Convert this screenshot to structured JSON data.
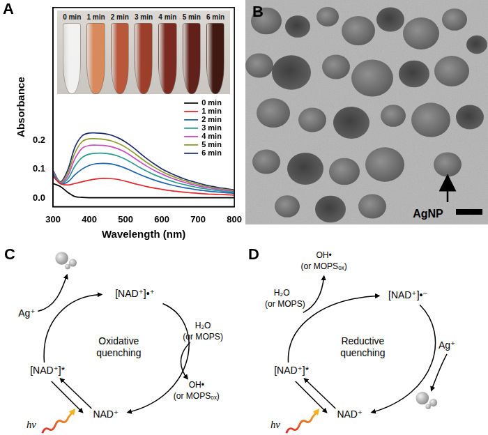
{
  "chart_data": {
    "type": "line",
    "x_label": "Wavelength (nm)",
    "y_label": "Absorbance",
    "x": [
      300,
      320,
      340,
      360,
      380,
      400,
      420,
      440,
      460,
      480,
      500,
      520,
      540,
      560,
      580,
      600,
      620,
      640,
      660,
      680,
      700,
      720,
      740,
      760,
      780,
      800
    ],
    "series": [
      {
        "name": "0 min",
        "color": "#000000",
        "values": [
          0.05,
          0.04,
          0.02,
          0.005,
          0.002,
          0.001,
          0.001,
          0.001,
          0.001,
          0.001,
          0.001,
          0.001,
          0.001,
          0.001,
          0.001,
          0.001,
          0.001,
          0.001,
          0.001,
          0.001,
          0.001,
          0.001,
          0.001,
          0.001,
          0.001,
          0.001
        ]
      },
      {
        "name": "1 min",
        "color": "#e3262b",
        "values": [
          0.075,
          0.05,
          0.045,
          0.05,
          0.056,
          0.062,
          0.066,
          0.068,
          0.067,
          0.064,
          0.058,
          0.051,
          0.045,
          0.039,
          0.034,
          0.03,
          0.026,
          0.023,
          0.02,
          0.018,
          0.016,
          0.014,
          0.013,
          0.012,
          0.011,
          0.01
        ]
      },
      {
        "name": "2 min",
        "color": "#1f64ad",
        "values": [
          0.08,
          0.05,
          0.055,
          0.08,
          0.1,
          0.113,
          0.119,
          0.12,
          0.118,
          0.112,
          0.103,
          0.092,
          0.081,
          0.071,
          0.062,
          0.054,
          0.047,
          0.041,
          0.036,
          0.032,
          0.028,
          0.025,
          0.022,
          0.02,
          0.018,
          0.016
        ]
      },
      {
        "name": "3 min",
        "color": "#2a9a8e",
        "values": [
          0.085,
          0.05,
          0.065,
          0.11,
          0.14,
          0.152,
          0.155,
          0.155,
          0.152,
          0.145,
          0.134,
          0.12,
          0.105,
          0.092,
          0.08,
          0.07,
          0.061,
          0.053,
          0.047,
          0.041,
          0.036,
          0.032,
          0.028,
          0.025,
          0.022,
          0.02
        ]
      },
      {
        "name": "4 min",
        "color": "#c24cc0",
        "values": [
          0.09,
          0.052,
          0.075,
          0.135,
          0.172,
          0.182,
          0.183,
          0.182,
          0.178,
          0.17,
          0.158,
          0.142,
          0.125,
          0.109,
          0.095,
          0.083,
          0.072,
          0.063,
          0.055,
          0.048,
          0.042,
          0.037,
          0.033,
          0.029,
          0.026,
          0.023
        ]
      },
      {
        "name": "5 min",
        "color": "#8c9a2c",
        "values": [
          0.092,
          0.054,
          0.085,
          0.155,
          0.195,
          0.205,
          0.205,
          0.203,
          0.198,
          0.189,
          0.176,
          0.159,
          0.14,
          0.122,
          0.106,
          0.092,
          0.08,
          0.07,
          0.061,
          0.053,
          0.047,
          0.041,
          0.036,
          0.032,
          0.029,
          0.026
        ]
      },
      {
        "name": "6 min",
        "color": "#1d2b6e",
        "values": [
          0.095,
          0.056,
          0.095,
          0.175,
          0.215,
          0.225,
          0.225,
          0.223,
          0.218,
          0.208,
          0.194,
          0.176,
          0.155,
          0.135,
          0.117,
          0.101,
          0.088,
          0.077,
          0.067,
          0.059,
          0.052,
          0.045,
          0.04,
          0.035,
          0.032,
          0.028
        ]
      }
    ],
    "xlim": [
      300,
      800
    ],
    "ylim": [
      -0.03,
      0.66
    ],
    "xticks": [
      300,
      400,
      500,
      600,
      700,
      800
    ],
    "yticks": [
      {
        "value": 0,
        "label": "0.0"
      },
      0.1,
      0.2
    ],
    "grid": false,
    "legend": "right"
  },
  "panels": [
    "A",
    "B",
    "C",
    "D"
  ],
  "inset_photo": {
    "labels": [
      "0 min",
      "1 min",
      "2 min",
      "3 min",
      "4 min",
      "5 min",
      "6 min"
    ]
  },
  "tem_image": {
    "annotation": "AgNP"
  },
  "diagram_c": {
    "mechanism": [
      "Oxidative",
      "quenching"
    ],
    "ground": "NAD⁺",
    "excited": "[NAD⁺]*",
    "radical": "[NAD⁺]•⁺",
    "metal_ion": "Ag⁺",
    "light": "hν",
    "donor": [
      "H₂O",
      "(or MOPS)"
    ],
    "product": [
      "OH•",
      "(or MOPSₒₓ)"
    ]
  },
  "diagram_d": {
    "mechanism": [
      "Reductive",
      "quenching"
    ],
    "ground": "NAD⁺",
    "excited": "[NAD⁺]*",
    "radical": "[NAD⁺]•⁻",
    "metal_ion": "Ag⁺",
    "light": "hν",
    "donor": [
      "H₂O",
      "(or MOPS)"
    ],
    "product": [
      "OH•",
      "(or MOPSₒₓ)"
    ]
  }
}
